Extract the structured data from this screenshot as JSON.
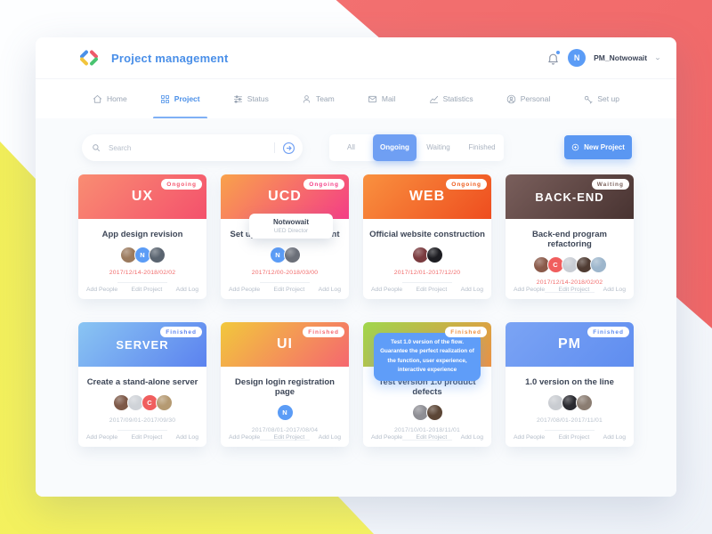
{
  "header": {
    "app_title": "Project management",
    "user_name": "PM_Notwowait",
    "avatar_initial": "N"
  },
  "nav": {
    "items": [
      {
        "label": "Home",
        "icon": "home-icon",
        "active": false
      },
      {
        "label": "Project",
        "icon": "project-icon",
        "active": true
      },
      {
        "label": "Status",
        "icon": "status-icon",
        "active": false
      },
      {
        "label": "Team",
        "icon": "team-icon",
        "active": false
      },
      {
        "label": "Mail",
        "icon": "mail-icon",
        "active": false
      },
      {
        "label": "Statistics",
        "icon": "statistics-icon",
        "active": false
      },
      {
        "label": "Personal",
        "icon": "personal-icon",
        "active": false
      },
      {
        "label": "Set up",
        "icon": "setup-icon",
        "active": false
      }
    ]
  },
  "toolbar": {
    "search_placeholder": "Search",
    "filters": [
      "All",
      "Ongoing",
      "Waiting",
      "Finished"
    ],
    "active_filter": "Ongoing",
    "new_project_label": "New Project"
  },
  "footer_links": [
    "Add People",
    "Edit Project",
    "Add Log"
  ],
  "colors": {
    "accent_blue": "#5b9cf6",
    "coral": "#f26d6d",
    "yellow": "#f5f263",
    "date_active": "#f16a6a",
    "date_done": "#b9c2cd"
  },
  "cards": [
    {
      "code": "UX",
      "status": "Ongoing",
      "status_color": "#f4566d",
      "gradient": [
        "#f98d72",
        "#f4516c"
      ],
      "title": "App design revision",
      "avatars": [
        {
          "kind": "photo",
          "color": "#9b7a5e"
        },
        {
          "kind": "initial",
          "label": "N",
          "color": "#5b9cf6"
        },
        {
          "kind": "photo",
          "color": "#5a6470"
        }
      ],
      "date": "2017/12/14-2018/02/02",
      "date_state": "active"
    },
    {
      "code": "UCD",
      "status": "Ongoing",
      "status_color": "#f43e86",
      "gradient": [
        "#f9a24b",
        "#f43e86"
      ],
      "title": "Set up the UED department",
      "avatars": [
        {
          "kind": "initial",
          "label": "N",
          "color": "#5b9cf6"
        },
        {
          "kind": "photo",
          "color": "#6b6f78"
        }
      ],
      "date": "2017/12/00-2018/03/00",
      "date_state": "active",
      "user_tooltip": {
        "name": "Notwowait",
        "role": "UED Director"
      }
    },
    {
      "code": "WEB",
      "status": "Ongoing",
      "status_color": "#ee5a19",
      "gradient": [
        "#f9913f",
        "#ee4d1f"
      ],
      "title": "Official website construction",
      "avatars": [
        {
          "kind": "photo",
          "color": "#7a3b3f"
        },
        {
          "kind": "photo",
          "color": "#1d1d22"
        }
      ],
      "date": "2017/12/01-2017/12/20",
      "date_state": "active"
    },
    {
      "code": "BACK-END",
      "status": "Waiting",
      "status_color": "#7a625c",
      "gradient": [
        "#7a5f5c",
        "#483331"
      ],
      "title": "Back-end program refactoring",
      "avatars": [
        {
          "kind": "photo",
          "color": "#8a5a4a"
        },
        {
          "kind": "initial",
          "label": "C",
          "color": "#f05e5e"
        },
        {
          "kind": "photo",
          "color": "#c9cdd4"
        },
        {
          "kind": "photo",
          "color": "#4f3c33"
        },
        {
          "kind": "photo",
          "color": "#9db6cc"
        }
      ],
      "date": "2017/12/14-2018/02/02",
      "date_state": "active"
    },
    {
      "code": "SERVER",
      "status": "Finished",
      "status_color": "#5b82ef",
      "gradient": [
        "#8ac5f3",
        "#5b82ef"
      ],
      "title": "Create a stand-alone server",
      "avatars": [
        {
          "kind": "photo",
          "color": "#7d5948"
        },
        {
          "kind": "photo",
          "color": "#cfd3d8"
        },
        {
          "kind": "initial",
          "label": "C",
          "color": "#f05e5e"
        },
        {
          "kind": "photo",
          "color": "#b59a72"
        }
      ],
      "date": "2017/09/01-2017/09/30",
      "date_state": "done"
    },
    {
      "code": "UI",
      "status": "Finished",
      "status_color": "#f5676f",
      "gradient": [
        "#f2c83c",
        "#f5676f"
      ],
      "title": "Design login registration page",
      "avatars": [
        {
          "kind": "initial",
          "label": "N",
          "color": "#5b9cf6"
        }
      ],
      "date": "2017/08/01-2017/08/04",
      "date_state": "done"
    },
    {
      "code": "",
      "status": "Finished",
      "status_color": "#ee9140",
      "gradient": [
        "#9fd74d",
        "#ee9140"
      ],
      "title": "Test version 1.0 product defects",
      "avatars": [
        {
          "kind": "photo",
          "color": "#8e8e94"
        },
        {
          "kind": "photo",
          "color": "#5c4636"
        }
      ],
      "date": "2017/10/01-2018/11/01",
      "date_state": "done",
      "note_tooltip": "Test 1.0 version of the flow. Guarantee the perfect realization of the function, user experience, interactive experience"
    },
    {
      "code": "PM",
      "status": "Finished",
      "status_color": "#5f8df0",
      "gradient": [
        "#7ba4f4",
        "#5f8df0"
      ],
      "title": "1.0 version on the line",
      "avatars": [
        {
          "kind": "photo",
          "color": "#c9ccd1"
        },
        {
          "kind": "photo",
          "color": "#2a2a30"
        },
        {
          "kind": "photo",
          "color": "#8b7d72"
        }
      ],
      "date": "2017/08/01-2017/11/01",
      "date_state": "done"
    }
  ]
}
